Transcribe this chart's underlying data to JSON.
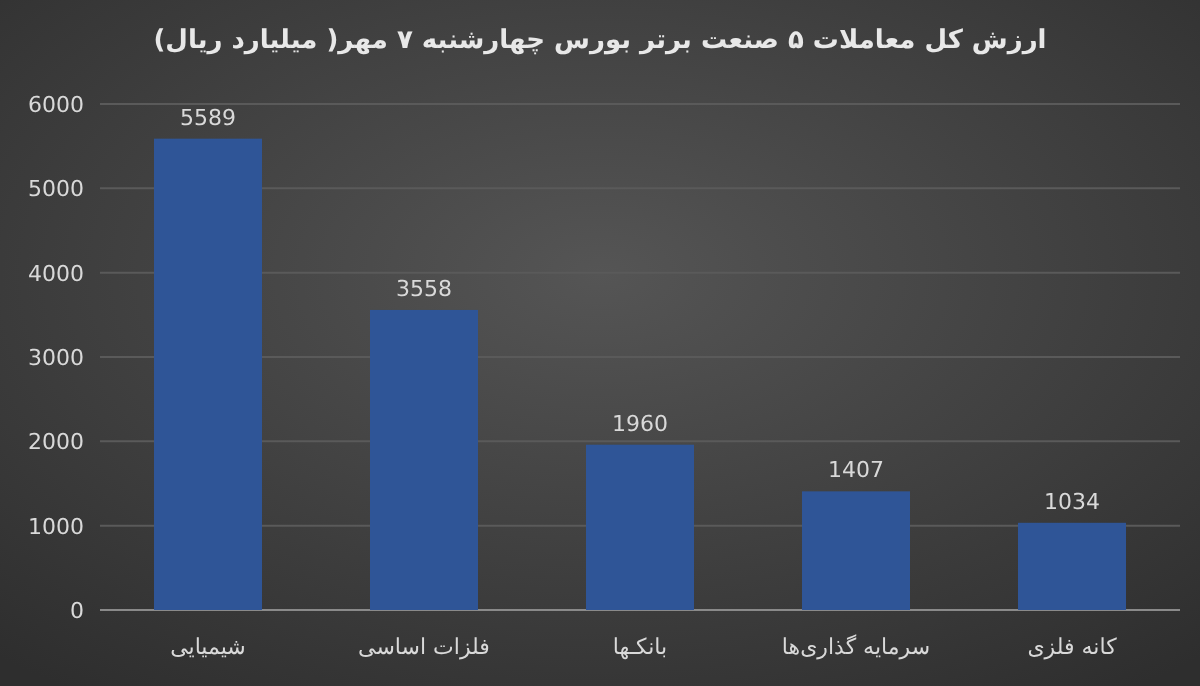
{
  "chart_data": {
    "type": "bar",
    "title": "ارزش کل معاملات ۵ صنعت برتر بورس چهارشنبه ۷ مهر( میلیارد ریال)",
    "categories": [
      "شیمیایی",
      "فلزات اساسی",
      "بانکـها",
      "سرمایه گذاری‌ها",
      "کانه فلزی"
    ],
    "values": [
      5589,
      3558,
      1960,
      1407,
      1034
    ],
    "color": "#2f5597",
    "ylim": [
      0,
      6000
    ],
    "yticks": [
      0,
      1000,
      2000,
      3000,
      4000,
      5000,
      6000
    ],
    "grid": "y",
    "data_labels": true
  }
}
